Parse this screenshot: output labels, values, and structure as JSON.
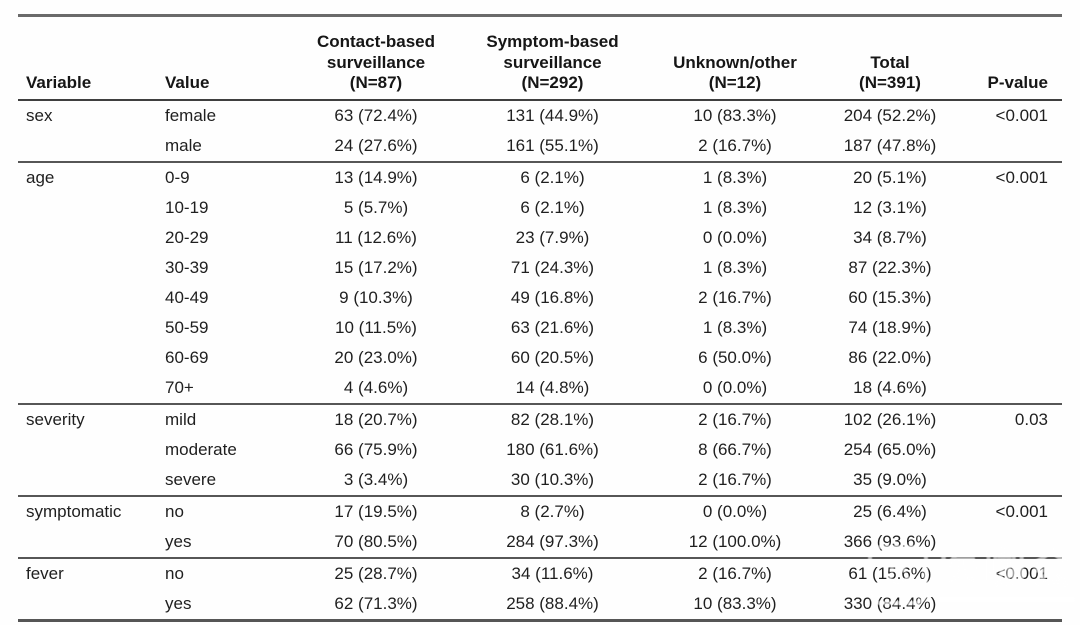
{
  "colors": {
    "text": "#1f1f1f",
    "rule_dark": "#3f3f3f",
    "rule_mid": "#565656",
    "rule_top": "#6a6a6a",
    "watermark": "#ffffff"
  },
  "table": {
    "columns": [
      {
        "key": "variable",
        "label": "Variable"
      },
      {
        "key": "value",
        "label": "Value"
      },
      {
        "key": "contact",
        "label": "Contact-based\nsurveillance\n(N=87)"
      },
      {
        "key": "symptom",
        "label": "Symptom-based\nsurveillance\n(N=292)"
      },
      {
        "key": "unknown",
        "label": "Unknown/other\n(N=12)"
      },
      {
        "key": "total",
        "label": "Total\n(N=391)"
      },
      {
        "key": "pvalue",
        "label": "P-value"
      }
    ],
    "groups": [
      {
        "variable": "sex",
        "pvalue": "<0.001",
        "rows": [
          {
            "value": "female",
            "contact": "63 (72.4%)",
            "symptom": "131 (44.9%)",
            "unknown": "10 (83.3%)",
            "total": "204 (52.2%)"
          },
          {
            "value": "male",
            "contact": "24 (27.6%)",
            "symptom": "161 (55.1%)",
            "unknown": "2 (16.7%)",
            "total": "187 (47.8%)"
          }
        ]
      },
      {
        "variable": "age",
        "pvalue": "<0.001",
        "rows": [
          {
            "value": "0-9",
            "contact": "13 (14.9%)",
            "symptom": "6 (2.1%)",
            "unknown": "1 (8.3%)",
            "total": "20 (5.1%)"
          },
          {
            "value": "10-19",
            "contact": "5 (5.7%)",
            "symptom": "6 (2.1%)",
            "unknown": "1 (8.3%)",
            "total": "12 (3.1%)"
          },
          {
            "value": "20-29",
            "contact": "11 (12.6%)",
            "symptom": "23 (7.9%)",
            "unknown": "0 (0.0%)",
            "total": "34 (8.7%)"
          },
          {
            "value": "30-39",
            "contact": "15 (17.2%)",
            "symptom": "71 (24.3%)",
            "unknown": "1 (8.3%)",
            "total": "87 (22.3%)"
          },
          {
            "value": "40-49",
            "contact": "9 (10.3%)",
            "symptom": "49 (16.8%)",
            "unknown": "2 (16.7%)",
            "total": "60 (15.3%)"
          },
          {
            "value": "50-59",
            "contact": "10 (11.5%)",
            "symptom": "63 (21.6%)",
            "unknown": "1 (8.3%)",
            "total": "74 (18.9%)"
          },
          {
            "value": "60-69",
            "contact": "20 (23.0%)",
            "symptom": "60 (20.5%)",
            "unknown": "6 (50.0%)",
            "total": "86 (22.0%)"
          },
          {
            "value": "70+",
            "contact": "4 (4.6%)",
            "symptom": "14 (4.8%)",
            "unknown": "0 (0.0%)",
            "total": "18 (4.6%)"
          }
        ]
      },
      {
        "variable": "severity",
        "pvalue": "0.03",
        "rows": [
          {
            "value": "mild",
            "contact": "18 (20.7%)",
            "symptom": "82 (28.1%)",
            "unknown": "2 (16.7%)",
            "total": "102 (26.1%)"
          },
          {
            "value": "moderate",
            "contact": "66 (75.9%)",
            "symptom": "180 (61.6%)",
            "unknown": "8 (66.7%)",
            "total": "254 (65.0%)"
          },
          {
            "value": "severe",
            "contact": "3 (3.4%)",
            "symptom": "30 (10.3%)",
            "unknown": "2 (16.7%)",
            "total": "35 (9.0%)"
          }
        ]
      },
      {
        "variable": "symptomatic",
        "pvalue": "<0.001",
        "rows": [
          {
            "value": "no",
            "contact": "17 (19.5%)",
            "symptom": "8 (2.7%)",
            "unknown": "0 (0.0%)",
            "total": "25 (6.4%)"
          },
          {
            "value": "yes",
            "contact": "70 (80.5%)",
            "symptom": "284 (97.3%)",
            "unknown": "12 (100.0%)",
            "total": "366 (93.6%)"
          }
        ]
      },
      {
        "variable": "fever",
        "pvalue": "<0.001",
        "rows": [
          {
            "value": "no",
            "contact": "25 (28.7%)",
            "symptom": "34 (11.6%)",
            "unknown": "2 (16.7%)",
            "total": "61 (15.6%)"
          },
          {
            "value": "yes",
            "contact": "62 (71.3%)",
            "symptom": "258 (88.4%)",
            "unknown": "10 (83.3%)",
            "total": "330 (84.4%)"
          }
        ]
      }
    ]
  },
  "watermark": {
    "text": "医咖会"
  }
}
